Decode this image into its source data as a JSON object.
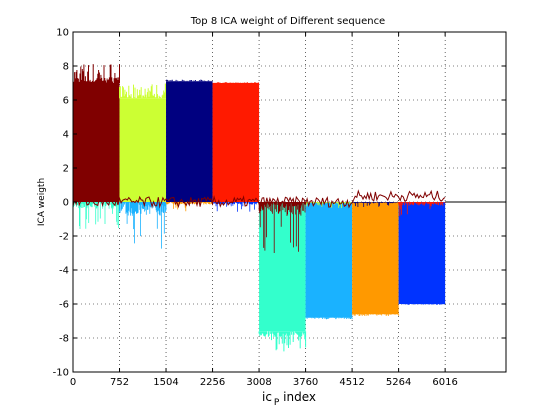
{
  "chart_data": {
    "type": "area",
    "title": "Top 8 ICA weight of Different sequence",
    "xlabel_main": "ic",
    "xlabel_sub": "P",
    "xlabel_tail": " index",
    "ylabel": "ICA weigth",
    "xlim": [
      0,
      7000
    ],
    "ylim": [
      -10,
      10
    ],
    "xticks": [
      0,
      752,
      1504,
      2256,
      3008,
      3760,
      4512,
      5264,
      6016
    ],
    "yticks": [
      -10,
      -8,
      -6,
      -4,
      -2,
      0,
      2,
      4,
      6,
      8,
      10
    ],
    "grid": true,
    "series": [
      {
        "x_start": 0,
        "x_end": 752,
        "main": 7.0,
        "peak": 8.2,
        "other_min": -1.6,
        "color": "#800000"
      },
      {
        "x_start": 752,
        "x_end": 1504,
        "main": 6.1,
        "peak": 7.0,
        "other_min": -3.2,
        "color": "#ccff33"
      },
      {
        "x_start": 1504,
        "x_end": 2256,
        "main": 7.1,
        "peak": 7.2,
        "other_min": -0.6,
        "color": "#000080"
      },
      {
        "x_start": 2256,
        "x_end": 3008,
        "main": 7.0,
        "peak": 7.05,
        "other_min": -0.6,
        "color": "#ff1a00"
      },
      {
        "x_start": 3008,
        "x_end": 3760,
        "main": -7.6,
        "peak": -8.8,
        "other_min": -3.0,
        "color": "#33ffcc"
      },
      {
        "x_start": 3760,
        "x_end": 4512,
        "main": -6.8,
        "peak": -6.9,
        "other_min": -0.4,
        "color": "#1ab2ff"
      },
      {
        "x_start": 4512,
        "x_end": 5264,
        "main": -6.6,
        "peak": -6.7,
        "other_min": -0.3,
        "color": "#ff9900"
      },
      {
        "x_start": 5264,
        "x_end": 6016,
        "main": -6.0,
        "peak": -6.05,
        "other_min": -0.9,
        "color": "#0033ff"
      }
    ]
  }
}
